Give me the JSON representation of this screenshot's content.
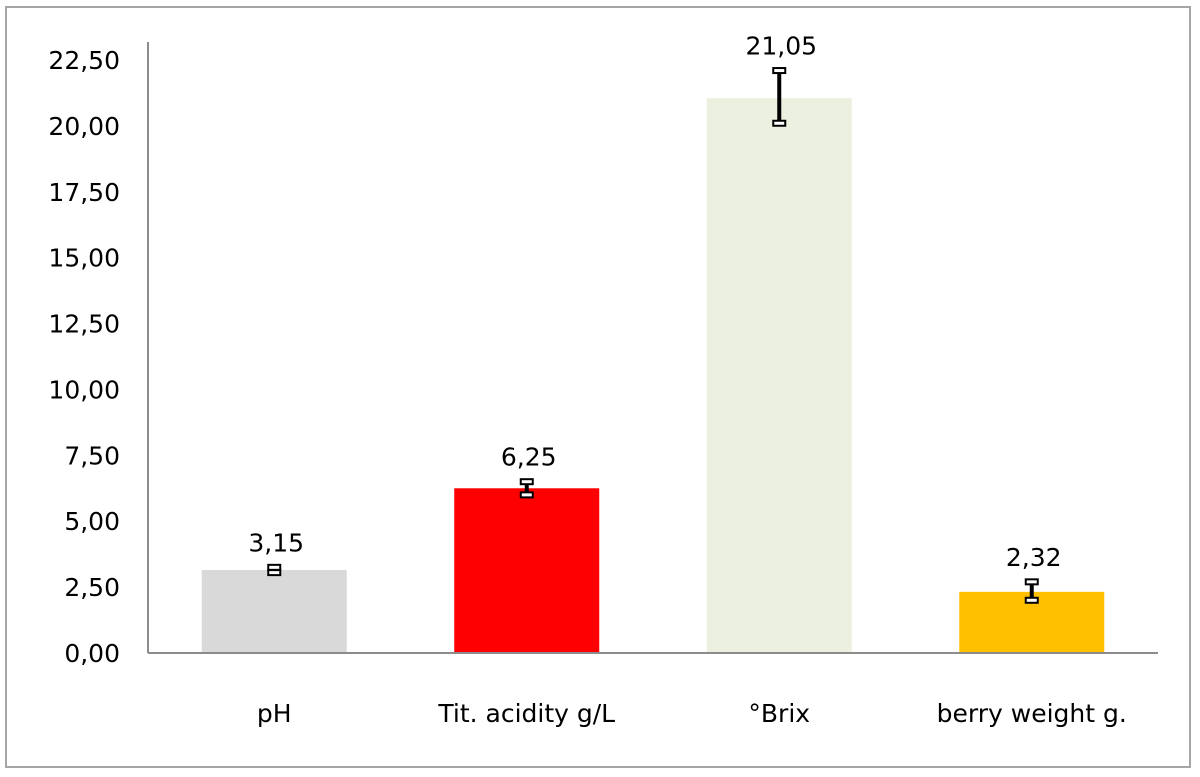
{
  "chart_data": {
    "type": "bar",
    "title": "",
    "xlabel": "",
    "ylabel": "",
    "categories": [
      "pH",
      "Tit. acidity g/L",
      "°Brix",
      "berry weight g."
    ],
    "values": [
      3.15,
      6.25,
      21.05,
      2.32
    ],
    "data_labels": [
      "3,15",
      "6,25",
      "21,05",
      "2,32"
    ],
    "error_bars": [
      {
        "low": 3.05,
        "high": 3.25
      },
      {
        "low": 6.0,
        "high": 6.5
      },
      {
        "low": 20.1,
        "high": 22.1
      },
      {
        "low": 2.0,
        "high": 2.7
      }
    ],
    "bar_colors": [
      "#d9d9d9",
      "#ff0000",
      "#ebf1de",
      "#ffc000"
    ],
    "ylim": [
      0,
      22.5
    ],
    "yticks": [
      0,
      2.5,
      5,
      7.5,
      10,
      12.5,
      15,
      17.5,
      20,
      22.5
    ],
    "ytick_labels": [
      "0,00",
      "2,50",
      "5,00",
      "7,50",
      "10,00",
      "12,50",
      "15,00",
      "17,50",
      "20,00",
      "22,50"
    ],
    "grid": false,
    "legend": "none"
  }
}
